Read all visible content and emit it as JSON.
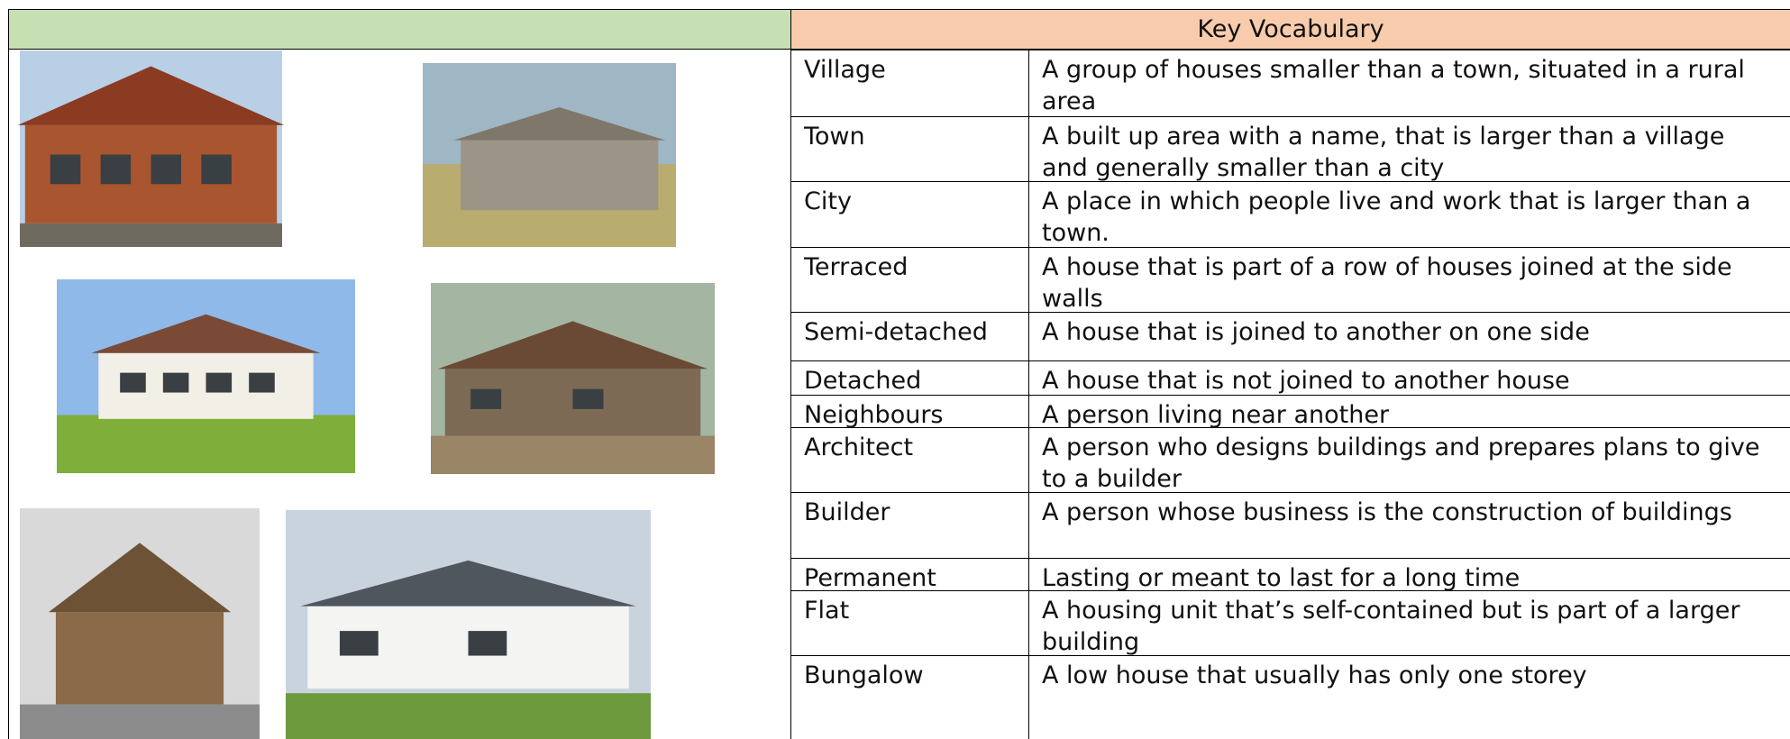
{
  "header": {
    "title": "Key Vocabulary"
  },
  "table": {
    "rows": [
      [
        "Village",
        "A group of houses smaller than a town, situated in a rural area"
      ],
      [
        "Town",
        "A built up area with a name, that is larger than a village and generally smaller than a city"
      ],
      [
        "City",
        "A place in which people live and work that is larger than a town."
      ],
      [
        "Terraced",
        "A house that is part of a row of houses joined at the side walls"
      ],
      [
        "Semi-detached",
        "A house that is joined to another on one side"
      ],
      [
        "Detached",
        "A house that is not joined to another house"
      ],
      [
        "Neighbours",
        "A person living near another"
      ],
      [
        "Architect",
        "A person who designs buildings and prepares plans to give to a builder"
      ],
      [
        "Builder",
        "A person whose business is the construction of buildings"
      ],
      [
        "Permanent",
        "Lasting or meant to last for a long time"
      ],
      [
        "Flat",
        "A housing unit that’s self-contained but is part of a larger building"
      ],
      [
        "Bungalow",
        "A  low house that usually has only one storey"
      ]
    ]
  }
}
